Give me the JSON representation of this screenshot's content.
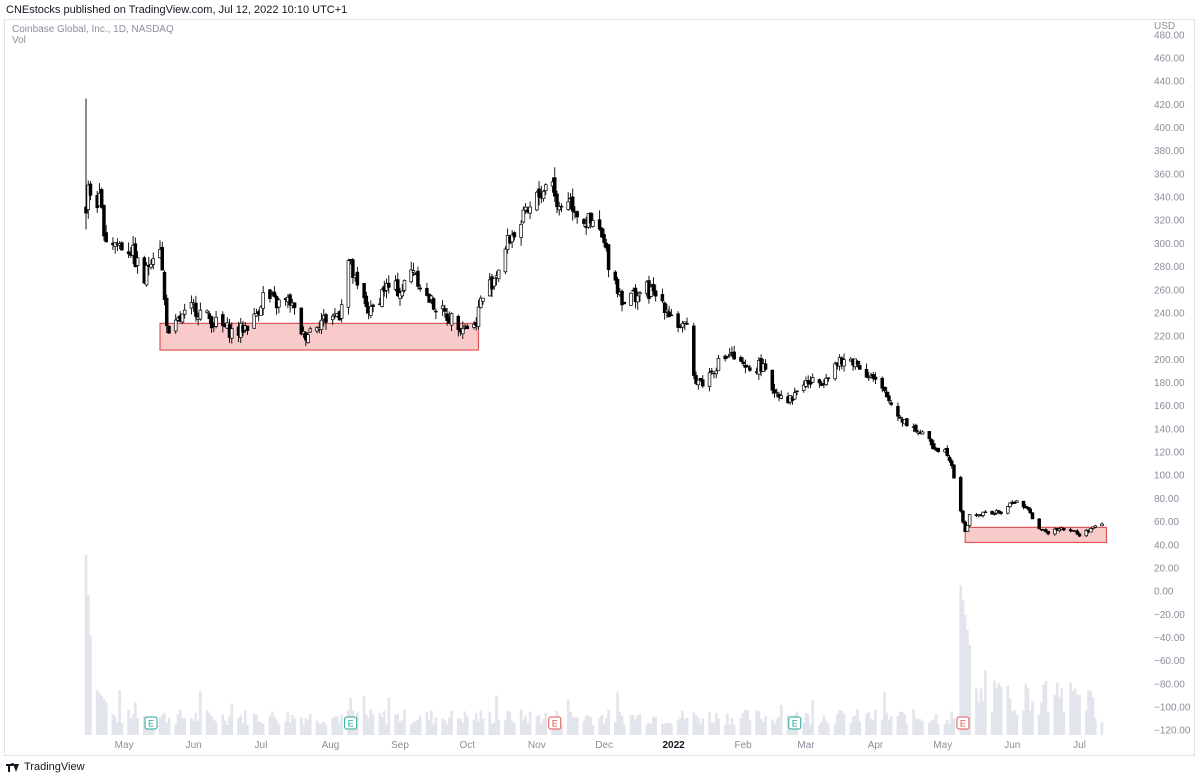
{
  "header": {
    "published_line": "CNEstocks published on TradingView.com, Jul 12, 2022 10:10 UTC+1"
  },
  "legend": {
    "symbol": "Coinbase Global, Inc., 1D, NASDAQ",
    "volume": "Vol"
  },
  "footer": {
    "brand": "TradingView",
    "logo_icon": "tradingview-logo-icon"
  },
  "colors": {
    "candle_body": "#000000",
    "candle_hollow": "#ffffff",
    "zone_fill": "#f8c1c1",
    "zone_stroke": "#e05555",
    "volume_bar": "#e3e5ec",
    "earnings_green": "#26a69a",
    "earnings_red": "#e05555",
    "axis_text": "#8a8e99",
    "axis_text_dark": "#131722"
  },
  "chart_data": {
    "type": "candlestick",
    "title": "Coinbase Global, Inc., 1D, NASDAQ",
    "currency_label": "USD",
    "y_ticks": [
      "480.00",
      "460.00",
      "440.00",
      "420.00",
      "400.00",
      "380.00",
      "360.00",
      "340.00",
      "320.00",
      "300.00",
      "280.00",
      "260.00",
      "240.00",
      "220.00",
      "200.00",
      "180.00",
      "160.00",
      "140.00",
      "120.00",
      "100.00",
      "80.00",
      "60.00",
      "40.00",
      "20.00",
      "0.00",
      "−20.00",
      "−40.00",
      "−60.00",
      "−80.00",
      "−100.00",
      "−120.00"
    ],
    "ylim": [
      -125,
      485
    ],
    "x_ticks": [
      "May",
      "Jun",
      "Jul",
      "Aug",
      "Sep",
      "Oct",
      "Nov",
      "Dec",
      "2022",
      "Feb",
      "Mar",
      "Apr",
      "May",
      "Jun",
      "Jul"
    ],
    "x_ticks_bold": [
      "2022"
    ],
    "date_range": [
      "2021-04-14",
      "2022-07-11"
    ],
    "price_anchors": [
      [
        "2021-04-14",
        330
      ],
      [
        "2021-04-15",
        345
      ],
      [
        "2021-04-20",
        335
      ],
      [
        "2021-04-23",
        305
      ],
      [
        "2021-04-28",
        300
      ],
      [
        "2021-05-04",
        295
      ],
      [
        "2021-05-10",
        268
      ],
      [
        "2021-05-13",
        290
      ],
      [
        "2021-05-17",
        300
      ],
      [
        "2021-05-19",
        250
      ],
      [
        "2021-05-21",
        218
      ],
      [
        "2021-05-25",
        232
      ],
      [
        "2021-06-01",
        245
      ],
      [
        "2021-06-10",
        232
      ],
      [
        "2021-06-20",
        222
      ],
      [
        "2021-06-28",
        235
      ],
      [
        "2021-07-02",
        255
      ],
      [
        "2021-07-08",
        248
      ],
      [
        "2021-07-14",
        250
      ],
      [
        "2021-07-20",
        220
      ],
      [
        "2021-07-26",
        232
      ],
      [
        "2021-08-05",
        240
      ],
      [
        "2021-08-09",
        285
      ],
      [
        "2021-08-13",
        260
      ],
      [
        "2021-08-19",
        240
      ],
      [
        "2021-08-25",
        262
      ],
      [
        "2021-09-02",
        260
      ],
      [
        "2021-09-07",
        280
      ],
      [
        "2021-09-12",
        255
      ],
      [
        "2021-09-20",
        240
      ],
      [
        "2021-09-28",
        230
      ],
      [
        "2021-10-04",
        228
      ],
      [
        "2021-10-07",
        250
      ],
      [
        "2021-10-14",
        275
      ],
      [
        "2021-10-20",
        305
      ],
      [
        "2021-10-28",
        325
      ],
      [
        "2021-11-03",
        345
      ],
      [
        "2021-11-08",
        358
      ],
      [
        "2021-11-10",
        330
      ],
      [
        "2021-11-15",
        340
      ],
      [
        "2021-11-22",
        320
      ],
      [
        "2021-11-29",
        310
      ],
      [
        "2021-12-03",
        285
      ],
      [
        "2021-12-07",
        262
      ],
      [
        "2021-12-10",
        250
      ],
      [
        "2021-12-14",
        255
      ],
      [
        "2021-12-20",
        260
      ],
      [
        "2021-12-27",
        250
      ],
      [
        "2022-01-03",
        230
      ],
      [
        "2022-01-07",
        225
      ],
      [
        "2022-01-10",
        185
      ],
      [
        "2022-01-14",
        180
      ],
      [
        "2022-01-20",
        195
      ],
      [
        "2022-01-26",
        205
      ],
      [
        "2022-02-02",
        190
      ],
      [
        "2022-02-09",
        195
      ],
      [
        "2022-02-14",
        175
      ],
      [
        "2022-02-22",
        165
      ],
      [
        "2022-02-28",
        180
      ],
      [
        "2022-03-07",
        180
      ],
      [
        "2022-03-14",
        195
      ],
      [
        "2022-03-22",
        200
      ],
      [
        "2022-03-30",
        185
      ],
      [
        "2022-04-05",
        170
      ],
      [
        "2022-04-12",
        150
      ],
      [
        "2022-04-20",
        138
      ],
      [
        "2022-04-27",
        125
      ],
      [
        "2022-05-03",
        120
      ],
      [
        "2022-05-05",
        110
      ],
      [
        "2022-05-09",
        70
      ],
      [
        "2022-05-11",
        50
      ],
      [
        "2022-05-13",
        65
      ],
      [
        "2022-05-20",
        67
      ],
      [
        "2022-05-27",
        68
      ],
      [
        "2022-06-02",
        78
      ],
      [
        "2022-06-07",
        72
      ],
      [
        "2022-06-13",
        55
      ],
      [
        "2022-06-16",
        50
      ],
      [
        "2022-06-22",
        55
      ],
      [
        "2022-06-28",
        52
      ],
      [
        "2022-07-01",
        48
      ],
      [
        "2022-07-06",
        54
      ],
      [
        "2022-07-11",
        57
      ]
    ],
    "highlight_zones": [
      {
        "start": "2021-05-17",
        "end": "2021-10-06",
        "low": 208,
        "high": 231
      },
      {
        "start": "2022-05-11",
        "end": "2022-07-13",
        "low": 42,
        "high": 55
      }
    ],
    "volume_note": "grey volume histogram in lower pane; tall spikes at listing (Apr 2021) and mid-May 2022",
    "earnings_markers": [
      {
        "date": "2021-05-13",
        "label": "E",
        "color": "green"
      },
      {
        "date": "2021-08-10",
        "label": "E",
        "color": "green"
      },
      {
        "date": "2021-11-09",
        "label": "E",
        "color": "red"
      },
      {
        "date": "2022-02-24",
        "label": "E",
        "color": "green"
      },
      {
        "date": "2022-05-10",
        "label": "E",
        "color": "red"
      }
    ]
  }
}
